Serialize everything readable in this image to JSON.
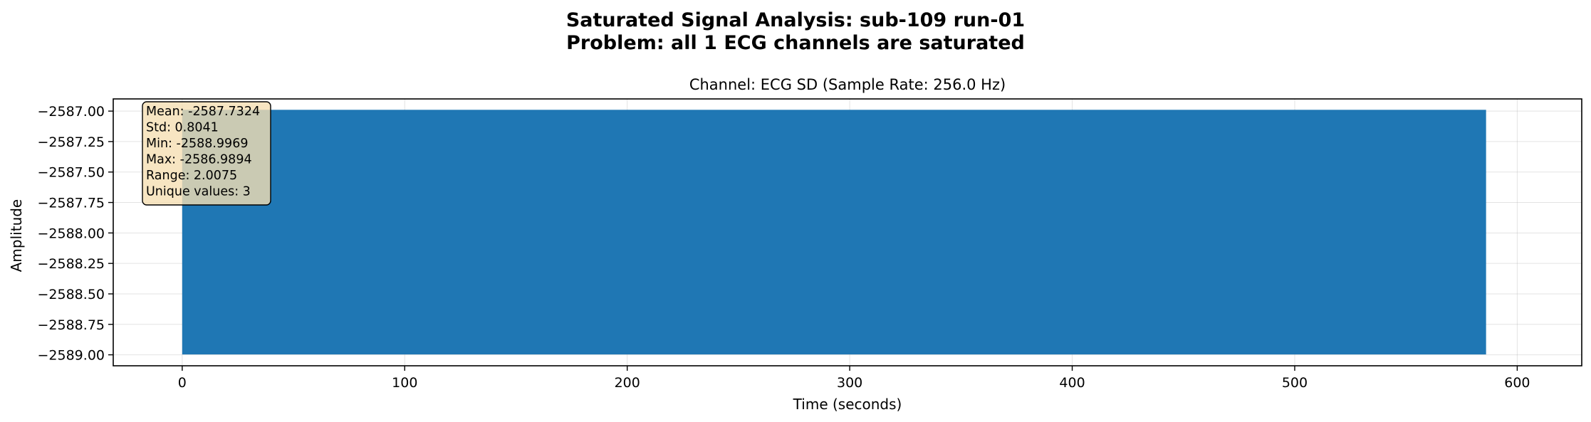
{
  "chart_data": {
    "type": "area",
    "title_lines": [
      "Saturated Signal Analysis: sub-109 run-01",
      "Problem: all 1 ECG channels are saturated"
    ],
    "axes_title": "Channel: ECG SD (Sample Rate: 256.0 Hz)",
    "xlabel": "Time (seconds)",
    "ylabel": "Amplitude",
    "xlim": [
      -31,
      629
    ],
    "ylim": [
      -2589.09,
      -2586.9
    ],
    "xticks": [
      0,
      100,
      200,
      300,
      400,
      500,
      600
    ],
    "xtick_labels": [
      "0",
      "100",
      "200",
      "300",
      "400",
      "500",
      "600"
    ],
    "yticks": [
      -2587.0,
      -2587.25,
      -2587.5,
      -2587.75,
      -2588.0,
      -2588.25,
      -2588.5,
      -2588.75,
      -2589.0
    ],
    "ytick_labels": [
      "−2587.00",
      "−2587.25",
      "−2587.50",
      "−2587.75",
      "−2588.00",
      "−2588.25",
      "−2588.50",
      "−2588.75",
      "−2589.00"
    ],
    "grid": true,
    "series": [
      {
        "x_start": 0,
        "x_end": 586,
        "y_min": -2588.9969,
        "y_max": -2586.9894,
        "color": "#1f77b4"
      }
    ],
    "stats_box": [
      "Mean: -2587.7324",
      "Std: 0.8041",
      "Min: -2588.9969",
      "Max: -2586.9894",
      "Range: 2.0075",
      "Unique values: 3"
    ],
    "stats_box_color": "#f5deb3"
  }
}
